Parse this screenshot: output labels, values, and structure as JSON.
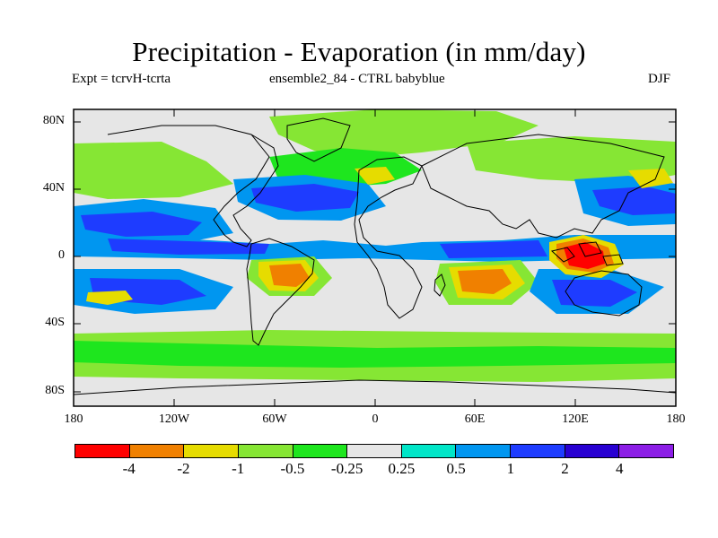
{
  "header": {
    "title": "Precipitation - Evaporation (in mm/day)",
    "expt": "Expt = tcrvH-tcrta",
    "ensemble": "ensemble2_84 - CTRL babyblue",
    "season": "DJF"
  },
  "axes": {
    "y_ticks": [
      "80N",
      "40N",
      "0",
      "40S",
      "80S"
    ],
    "x_ticks": [
      "180",
      "120W",
      "60W",
      "0",
      "60E",
      "120E",
      "180"
    ]
  },
  "legend": {
    "labels": [
      "-4",
      "-2",
      "-1",
      "-0.5",
      "-0.25",
      "0.25",
      "0.5",
      "1",
      "2",
      "4"
    ],
    "colors": [
      "#ff0000",
      "#f08000",
      "#e6dc00",
      "#86e634",
      "#1ee61e",
      "#e6e6e6",
      "#00e6c8",
      "#0096f0",
      "#1e3cff",
      "#2800d2",
      "#8c1ee6"
    ]
  },
  "map": {
    "background": "#e6e6e6",
    "coast_color": "#000000"
  }
}
